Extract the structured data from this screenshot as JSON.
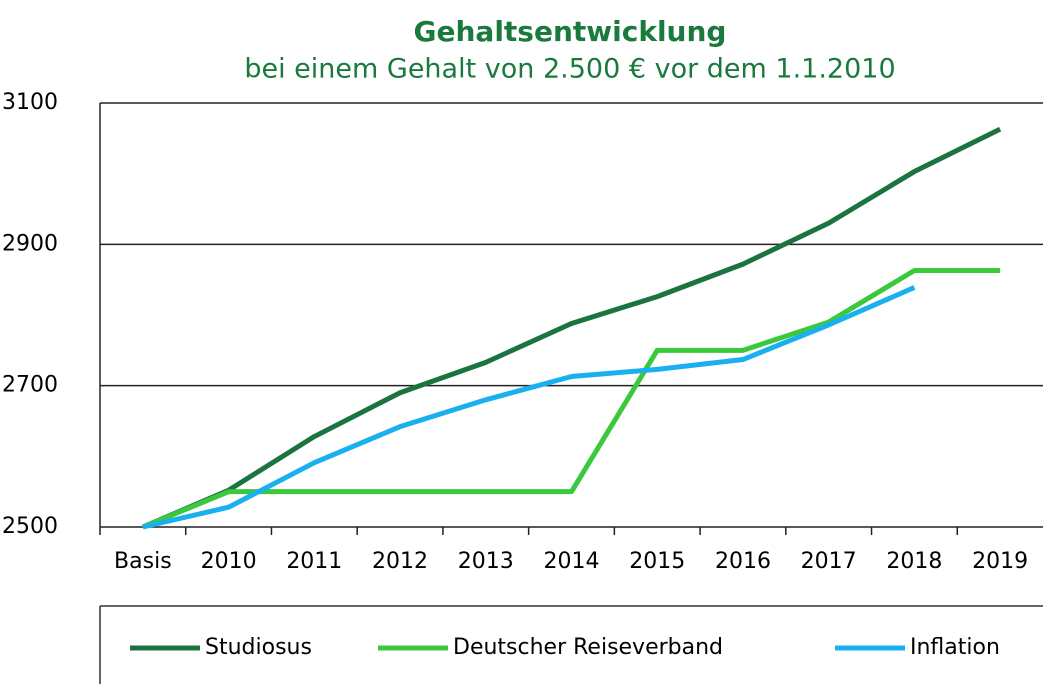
{
  "chart_data": {
    "type": "line",
    "title": "Gehaltsentwicklung",
    "subtitle": "bei einem Gehalt von 2.500 € vor dem 1.1.2010",
    "categories": [
      "Basis",
      "2010",
      "2011",
      "2012",
      "2013",
      "2014",
      "2015",
      "2016",
      "2017",
      "2018",
      "2019"
    ],
    "series": [
      {
        "name": "Studiosus",
        "color": "#1b7340",
        "values": [
          2500,
          2552,
          2628,
          2690,
          2733,
          2788,
          2826,
          2872,
          2930,
          3003,
          3063
        ]
      },
      {
        "name": "Deutscher Reiseverband",
        "color": "#3cc83c",
        "values": [
          2500,
          2550,
          2550,
          2550,
          2550,
          2550,
          2750,
          2750,
          2790,
          2863,
          2863
        ]
      },
      {
        "name": "Inflation",
        "color": "#1ab0f0",
        "values": [
          2500,
          2528,
          2591,
          2642,
          2680,
          2713,
          2723,
          2737,
          2786,
          2839,
          null
        ]
      }
    ],
    "ylim": [
      2500,
      3100
    ],
    "yticks": [
      2500,
      2700,
      2900,
      3100
    ],
    "grid": true,
    "legend": "bottom"
  }
}
